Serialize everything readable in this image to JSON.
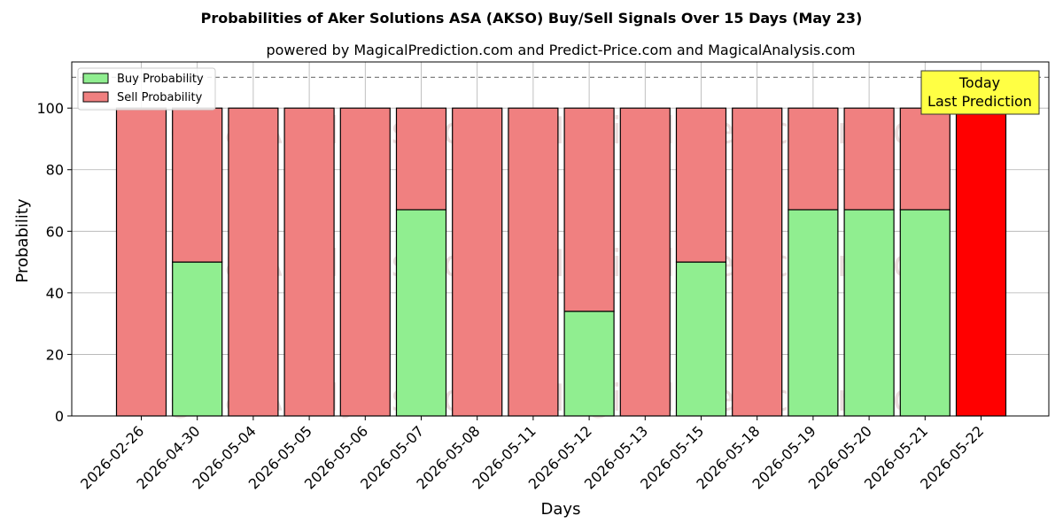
{
  "chart_data": {
    "type": "bar",
    "stacked": true,
    "title": "Probabilities of Aker Solutions ASA (AKSO) Buy/Sell Signals Over 15 Days (May 23)",
    "subtitle": "powered by MagicalPrediction.com and Predict-Price.com and MagicalAnalysis.com",
    "xlabel": "Days",
    "ylabel": "Probability",
    "ylim": [
      0,
      115
    ],
    "yticks": [
      0,
      20,
      40,
      60,
      80,
      100
    ],
    "reference_line": 110,
    "grid": true,
    "legend_placement": "top-left",
    "categories": [
      "2026-02-26",
      "2026-04-30",
      "2026-05-04",
      "2026-05-05",
      "2026-05-06",
      "2026-05-07",
      "2026-05-08",
      "2026-05-11",
      "2026-05-12",
      "2026-05-13",
      "2026-05-15",
      "2026-05-18",
      "2026-05-19",
      "2026-05-20",
      "2026-05-21",
      "2026-05-22"
    ],
    "series": [
      {
        "name": "Buy Probability",
        "color": "#90ee90",
        "values": [
          0,
          50,
          0,
          0,
          0,
          67,
          0,
          0,
          34,
          0,
          50,
          0,
          67,
          67,
          67,
          0
        ]
      },
      {
        "name": "Sell Probability",
        "color": "#f08080",
        "values": [
          100,
          50,
          100,
          100,
          100,
          33,
          100,
          100,
          66,
          100,
          50,
          100,
          33,
          33,
          33,
          100
        ]
      }
    ],
    "highlight": {
      "category": "2026-05-22",
      "color": "#ff0000"
    },
    "annotation": {
      "lines": [
        "Today",
        "Last Prediction"
      ],
      "color": "#ffff44"
    },
    "watermarks": [
      "MagicalAnalysis.com",
      "MagicalPrediction.com"
    ]
  }
}
